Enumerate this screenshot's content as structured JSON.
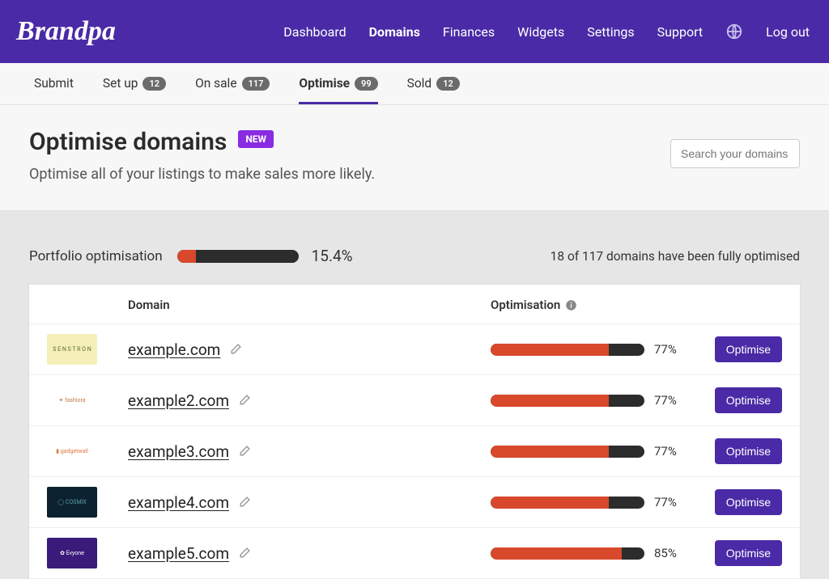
{
  "brand": "Brandpa",
  "colors": {
    "header_bg": "#4a2aa6",
    "accent_purple": "#4a2aa6",
    "new_badge_bg": "#8a2be2",
    "progress_track": "#2c2c2c",
    "progress_fill": "#d8482b",
    "page_bg": "#e6e6e6",
    "card_bg": "#ffffff"
  },
  "topnav": {
    "items": [
      {
        "label": "Dashboard",
        "active": false
      },
      {
        "label": "Domains",
        "active": true
      },
      {
        "label": "Finances",
        "active": false
      },
      {
        "label": "Widgets",
        "active": false
      },
      {
        "label": "Settings",
        "active": false
      },
      {
        "label": "Support",
        "active": false
      }
    ],
    "logout": "Log out"
  },
  "subnav": {
    "items": [
      {
        "label": "Submit",
        "count": null,
        "active": false
      },
      {
        "label": "Set up",
        "count": "12",
        "active": false
      },
      {
        "label": "On sale",
        "count": "117",
        "active": false
      },
      {
        "label": "Optimise",
        "count": "99",
        "active": true
      },
      {
        "label": "Sold",
        "count": "12",
        "active": false
      }
    ]
  },
  "page": {
    "title": "Optimise domains",
    "badge": "NEW",
    "subtitle": "Optimise all of your listings to make sales more likely."
  },
  "search": {
    "placeholder": "Search your domains"
  },
  "portfolio": {
    "label": "Portfolio optimisation",
    "percent": 15.4,
    "percent_text": "15.4%",
    "status": "18 of 117 domains have been fully optimised"
  },
  "table": {
    "headers": {
      "domain": "Domain",
      "optimisation": "Optimisation"
    },
    "rows": [
      {
        "domain": "example.com",
        "opt": 77,
        "opt_text": "77%",
        "btn": "Optimise",
        "thumb_bg": "#f5f0b8",
        "thumb_fg": "#556b2f",
        "thumb_text": "S E N S T R O N"
      },
      {
        "domain": "example2.com",
        "opt": 77,
        "opt_text": "77%",
        "btn": "Optimise",
        "thumb_bg": "#ffffff",
        "thumb_fg": "#c17a4a",
        "thumb_text": "✦ fashiora"
      },
      {
        "domain": "example3.com",
        "opt": 77,
        "opt_text": "77%",
        "btn": "Optimise",
        "thumb_bg": "#ffffff",
        "thumb_fg": "#e07a3f",
        "thumb_text": "▮ gadgetwall"
      },
      {
        "domain": "example4.com",
        "opt": 77,
        "opt_text": "77%",
        "btn": "Optimise",
        "thumb_bg": "#0d2230",
        "thumb_fg": "#5aa0a8",
        "thumb_text": "◯ COSMIX"
      },
      {
        "domain": "example5.com",
        "opt": 85,
        "opt_text": "85%",
        "btn": "Optimise",
        "thumb_bg": "#3a1b7a",
        "thumb_fg": "#ffffff",
        "thumb_text": "✿ Evyone"
      }
    ]
  }
}
